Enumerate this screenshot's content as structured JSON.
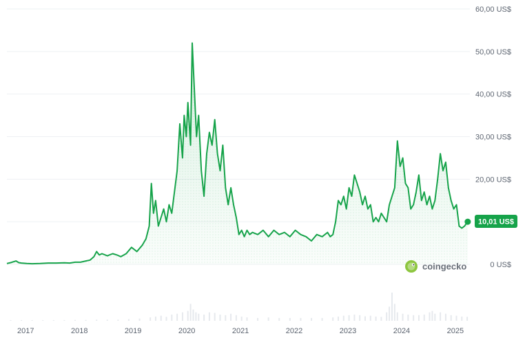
{
  "colors": {
    "line": "#16a34a",
    "badge": "#16a34a",
    "volume": "#e6e9ed",
    "grid": "#eef0f3",
    "text": "#5c6470"
  },
  "brand": {
    "name": "coingecko",
    "icon": "gecko-logo-icon"
  },
  "current_price_label": "10,01 US$",
  "chart_data": [
    {
      "type": "area",
      "title": "",
      "xlabel": "",
      "ylabel": "",
      "grid": true,
      "ylim": [
        0,
        60
      ],
      "y_ticks": [
        0,
        10,
        20,
        30,
        40,
        50,
        60
      ],
      "y_tick_labels": [
        "0 US$",
        "",
        "20,00 US$",
        "30,00 US$",
        "40,00 US$",
        "50,00 US$",
        "60,00 US$"
      ],
      "x_ticks": [
        2017,
        2018,
        2019,
        2020,
        2021,
        2022,
        2023,
        2024,
        2025
      ],
      "x_tick_labels": [
        "2017",
        "2018",
        "2019",
        "2020",
        "2021",
        "2022",
        "2023",
        "2024",
        "2025"
      ],
      "xlim": [
        2016.83,
        2025.45
      ],
      "series": [
        {
          "name": "",
          "x": [
            2016.83,
            2016.9,
            2017.0,
            2017.05,
            2017.1,
            2017.2,
            2017.3,
            2017.45,
            2017.6,
            2017.75,
            2017.9,
            2018.0,
            2018.1,
            2018.2,
            2018.3,
            2018.38,
            2018.45,
            2018.5,
            2018.55,
            2018.6,
            2018.7,
            2018.8,
            2018.88,
            2018.95,
            2019.05,
            2019.15,
            2019.25,
            2019.35,
            2019.42,
            2019.48,
            2019.52,
            2019.56,
            2019.6,
            2019.65,
            2019.7,
            2019.75,
            2019.8,
            2019.85,
            2019.9,
            2019.95,
            2020.0,
            2020.05,
            2020.1,
            2020.13,
            2020.17,
            2020.2,
            2020.25,
            2020.28,
            2020.32,
            2020.36,
            2020.4,
            2020.45,
            2020.5,
            2020.55,
            2020.6,
            2020.65,
            2020.7,
            2020.75,
            2020.8,
            2020.85,
            2020.9,
            2020.95,
            2021.0,
            2021.05,
            2021.1,
            2021.15,
            2021.2,
            2021.25,
            2021.3,
            2021.35,
            2021.4,
            2021.5,
            2021.6,
            2021.7,
            2021.8,
            2021.9,
            2022.0,
            2022.1,
            2022.2,
            2022.3,
            2022.4,
            2022.5,
            2022.6,
            2022.7,
            2022.8,
            2022.85,
            2022.9,
            2022.95,
            2023.0,
            2023.05,
            2023.1,
            2023.15,
            2023.2,
            2023.25,
            2023.3,
            2023.35,
            2023.4,
            2023.45,
            2023.5,
            2023.55,
            2023.6,
            2023.65,
            2023.7,
            2023.75,
            2023.8,
            2023.85,
            2023.9,
            2023.95,
            2024.0,
            2024.05,
            2024.1,
            2024.15,
            2024.2,
            2024.25,
            2024.3,
            2024.35,
            2024.4,
            2024.45,
            2024.5,
            2024.55,
            2024.6,
            2024.65,
            2024.7,
            2024.75,
            2024.8,
            2024.85,
            2024.9,
            2024.95,
            2025.0,
            2025.05,
            2025.1,
            2025.15,
            2025.2,
            2025.25,
            2025.3,
            2025.35,
            2025.41
          ],
          "values": [
            0.2,
            0.4,
            0.8,
            0.4,
            0.3,
            0.2,
            0.15,
            0.2,
            0.3,
            0.3,
            0.35,
            0.3,
            0.5,
            0.5,
            0.8,
            1.0,
            1.8,
            3.0,
            2.2,
            2.5,
            2.0,
            2.5,
            2.2,
            1.8,
            2.5,
            4.0,
            3.0,
            4.5,
            6.0,
            9.0,
            19.0,
            12.0,
            15.0,
            9.0,
            11.0,
            13.0,
            10.0,
            14.0,
            12.0,
            17.0,
            22.0,
            33.0,
            25.0,
            35.0,
            30.0,
            38.0,
            28.0,
            52.0,
            41.0,
            30.0,
            35.0,
            22.0,
            16.0,
            26.0,
            31.0,
            28.0,
            34.0,
            26.0,
            22.0,
            28.0,
            18.0,
            14.0,
            18.0,
            14.0,
            11.0,
            7.0,
            8.0,
            6.5,
            8.0,
            7.0,
            7.5,
            7.0,
            8.0,
            6.5,
            8.0,
            7.0,
            7.5,
            6.5,
            8.0,
            7.0,
            6.5,
            5.5,
            7.0,
            6.5,
            7.5,
            6.5,
            7.0,
            10.0,
            15.0,
            14.0,
            16.0,
            13.0,
            18.0,
            16.0,
            21.0,
            19.0,
            17.0,
            14.0,
            16.0,
            13.0,
            14.0,
            10.0,
            11.0,
            10.0,
            12.0,
            11.0,
            10.0,
            14.0,
            16.0,
            18.0,
            29.0,
            23.0,
            25.0,
            19.0,
            18.0,
            13.0,
            14.0,
            17.0,
            21.0,
            15.0,
            17.0,
            14.0,
            16.0,
            13.0,
            15.0,
            20.0,
            26.0,
            22.0,
            24.0,
            18.0,
            15.0,
            13.0,
            14.0,
            9.0,
            8.5,
            9.0,
            10.01
          ]
        }
      ]
    },
    {
      "type": "bar",
      "title": "",
      "series_name": "",
      "x": [
        2016.9,
        2017.1,
        2017.3,
        2017.5,
        2017.7,
        2017.9,
        2018.1,
        2018.3,
        2018.5,
        2018.7,
        2018.9,
        2019.1,
        2019.3,
        2019.5,
        2019.6,
        2019.7,
        2019.8,
        2019.9,
        2020.0,
        2020.1,
        2020.2,
        2020.25,
        2020.3,
        2020.35,
        2020.4,
        2020.5,
        2020.6,
        2020.7,
        2020.8,
        2020.9,
        2021.0,
        2021.1,
        2021.2,
        2021.3,
        2021.5,
        2021.7,
        2021.9,
        2022.1,
        2022.3,
        2022.5,
        2022.7,
        2022.9,
        2023.0,
        2023.1,
        2023.2,
        2023.3,
        2023.4,
        2023.5,
        2023.6,
        2023.7,
        2023.8,
        2023.9,
        2023.95,
        2024.0,
        2024.05,
        2024.1,
        2024.2,
        2024.3,
        2024.4,
        2024.5,
        2024.6,
        2024.7,
        2024.75,
        2024.8,
        2024.9,
        2025.0,
        2025.1,
        2025.2,
        2025.3,
        2025.4
      ],
      "values": [
        0.02,
        0.02,
        0.02,
        0.02,
        0.02,
        0.02,
        0.03,
        0.03,
        0.04,
        0.04,
        0.04,
        0.06,
        0.08,
        0.12,
        0.15,
        0.18,
        0.14,
        0.22,
        0.25,
        0.3,
        0.35,
        0.6,
        0.4,
        0.3,
        0.25,
        0.22,
        0.3,
        0.28,
        0.22,
        0.2,
        0.25,
        0.2,
        0.15,
        0.12,
        0.1,
        0.12,
        0.1,
        0.1,
        0.1,
        0.1,
        0.1,
        0.12,
        0.15,
        0.18,
        0.2,
        0.22,
        0.2,
        0.16,
        0.18,
        0.15,
        0.14,
        0.3,
        0.5,
        1.0,
        0.6,
        0.3,
        0.25,
        0.22,
        0.2,
        0.2,
        0.22,
        0.3,
        0.35,
        0.25,
        0.3,
        0.25,
        0.2,
        0.18,
        0.15,
        0.14
      ]
    }
  ]
}
